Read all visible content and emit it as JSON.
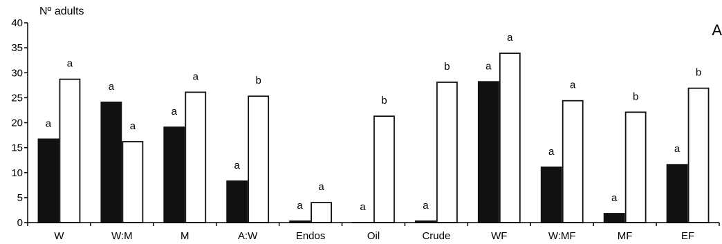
{
  "chart_data": {
    "type": "bar",
    "title": "",
    "panel_label": "A",
    "ylabel": "Nº adults",
    "xlabel": "",
    "ylim": [
      0,
      40
    ],
    "yticks": [
      0,
      5,
      10,
      15,
      20,
      25,
      30,
      35,
      40
    ],
    "grid": false,
    "legend": "none",
    "categories": [
      "W",
      "W:M",
      "M",
      "A:W",
      "Endos",
      "Oil",
      "Crude",
      "WF",
      "W:MF",
      "MF",
      "EF"
    ],
    "series": [
      {
        "color": "#111111",
        "values": [
          16.7,
          24.1,
          19.1,
          8.3,
          0.3,
          0.0,
          0.3,
          28.2,
          11.1,
          1.8,
          11.6
        ],
        "labels": [
          "a",
          "a",
          "a",
          "a",
          "a",
          "a",
          "a",
          "a",
          "a",
          "a",
          "a"
        ]
      },
      {
        "color": "#ffffff",
        "values": [
          28.7,
          16.2,
          26.1,
          25.3,
          4.0,
          21.3,
          28.1,
          33.9,
          24.4,
          22.1,
          26.9
        ],
        "labels": [
          "a",
          "a",
          "a",
          "b",
          "a",
          "b",
          "b",
          "a",
          "a",
          "b",
          "b"
        ]
      }
    ]
  }
}
